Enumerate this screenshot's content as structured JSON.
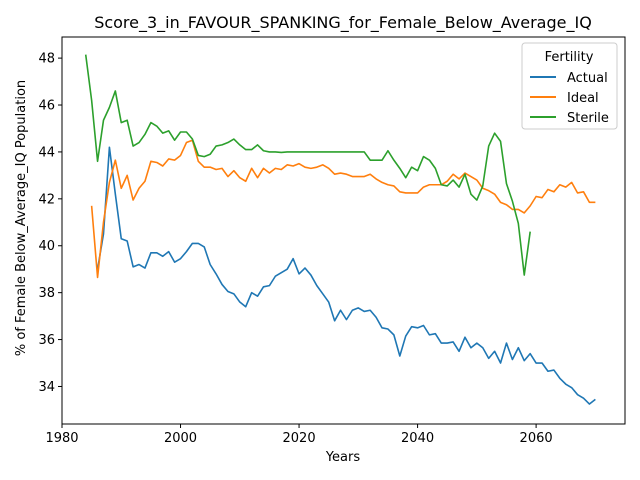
{
  "chart_data": {
    "type": "line",
    "title": "Score_3_in_FAVOUR_SPANKING_for_Female_Below_Average_IQ",
    "xlabel": "Years",
    "ylabel": "% of Female Below_Average_IQ Population",
    "xlim": [
      1980,
      2075
    ],
    "ylim": [
      32.4,
      48.9
    ],
    "xticks": [
      1980,
      2000,
      2020,
      2040,
      2060
    ],
    "yticks": [
      34,
      36,
      38,
      40,
      42,
      44,
      46,
      48
    ],
    "grid": false,
    "legend": {
      "title": "Fertility",
      "placement": "top-right"
    },
    "series": [
      {
        "name": "Actual",
        "color": "#1f77b4",
        "x": [
          1986,
          1987,
          1988,
          1989,
          1990,
          1991,
          1992,
          1993,
          1994,
          1995,
          1996,
          1997,
          1998,
          1999,
          2000,
          2001,
          2002,
          2003,
          2004,
          2005,
          2006,
          2007,
          2008,
          2009,
          2010,
          2011,
          2012,
          2013,
          2014,
          2015,
          2016,
          2017,
          2018,
          2019,
          2020,
          2021,
          2022,
          2023,
          2024,
          2025,
          2026,
          2027,
          2028,
          2029,
          2030,
          2031,
          2032,
          2033,
          2034,
          2035,
          2036,
          2037,
          2038,
          2039,
          2040,
          2041,
          2042,
          2043,
          2044,
          2045,
          2046,
          2047,
          2048,
          2049,
          2050,
          2051,
          2052,
          2053,
          2054,
          2055,
          2056,
          2057,
          2058,
          2059,
          2060,
          2061,
          2062,
          2063,
          2064,
          2065,
          2066,
          2067,
          2068,
          2069,
          2070
        ],
        "values": [
          39.0,
          40.5,
          44.2,
          42.2,
          40.3,
          40.2,
          39.1,
          39.2,
          39.05,
          39.7,
          39.7,
          39.55,
          39.75,
          39.3,
          39.45,
          39.75,
          40.1,
          40.1,
          39.95,
          39.2,
          38.8,
          38.35,
          38.05,
          37.95,
          37.6,
          37.4,
          38.0,
          37.85,
          38.25,
          38.3,
          38.7,
          38.85,
          39.0,
          39.45,
          38.8,
          39.05,
          38.75,
          38.3,
          37.95,
          37.6,
          36.8,
          37.25,
          36.85,
          37.25,
          37.35,
          37.2,
          37.25,
          36.95,
          36.5,
          36.45,
          36.2,
          35.3,
          36.15,
          36.55,
          36.5,
          36.6,
          36.2,
          36.25,
          35.85,
          35.85,
          35.9,
          35.5,
          36.1,
          35.65,
          35.85,
          35.65,
          35.2,
          35.5,
          35.0,
          35.85,
          35.15,
          35.65,
          35.1,
          35.4,
          35.0,
          35.0,
          34.65,
          34.7,
          34.35,
          34.1,
          33.95,
          33.65,
          33.5,
          33.25,
          33.45
        ]
      },
      {
        "name": "Ideal",
        "color": "#ff7f0e",
        "x": [
          1985,
          1986,
          1987,
          1988,
          1989,
          1990,
          1991,
          1992,
          1993,
          1994,
          1995,
          1996,
          1997,
          1998,
          1999,
          2000,
          2001,
          2002,
          2003,
          2004,
          2005,
          2006,
          2007,
          2008,
          2009,
          2010,
          2011,
          2012,
          2013,
          2014,
          2015,
          2016,
          2017,
          2018,
          2019,
          2020,
          2021,
          2022,
          2023,
          2024,
          2025,
          2026,
          2027,
          2028,
          2029,
          2030,
          2031,
          2032,
          2033,
          2034,
          2035,
          2036,
          2037,
          2038,
          2039,
          2040,
          2041,
          2042,
          2043,
          2044,
          2045,
          2046,
          2047,
          2048,
          2049,
          2050,
          2051,
          2052,
          2053,
          2054,
          2055,
          2056,
          2057,
          2058,
          2059,
          2060,
          2061,
          2062,
          2063,
          2064,
          2065,
          2066,
          2067,
          2068,
          2069,
          2070
        ],
        "values": [
          41.7,
          38.65,
          41.0,
          42.7,
          43.65,
          42.45,
          43.0,
          41.95,
          42.45,
          42.75,
          43.6,
          43.55,
          43.4,
          43.7,
          43.65,
          43.85,
          44.4,
          44.5,
          43.6,
          43.35,
          43.35,
          43.25,
          43.3,
          42.95,
          43.2,
          42.9,
          42.75,
          43.3,
          42.9,
          43.3,
          43.1,
          43.3,
          43.25,
          43.45,
          43.4,
          43.5,
          43.35,
          43.3,
          43.35,
          43.45,
          43.3,
          43.05,
          43.1,
          43.05,
          42.95,
          42.95,
          42.95,
          43.05,
          42.85,
          42.7,
          42.6,
          42.55,
          42.3,
          42.25,
          42.25,
          42.25,
          42.5,
          42.6,
          42.6,
          42.6,
          42.75,
          43.05,
          42.85,
          43.1,
          42.95,
          42.8,
          42.45,
          42.35,
          42.2,
          41.85,
          41.75,
          41.55,
          41.55,
          41.4,
          41.7,
          42.1,
          42.05,
          42.4,
          42.3,
          42.6,
          42.5,
          42.7,
          42.25,
          42.3,
          41.85,
          41.85
        ]
      },
      {
        "name": "Sterile",
        "color": "#2ca02c",
        "x": [
          1984,
          1985,
          1986,
          1987,
          1988,
          1989,
          1990,
          1991,
          1992,
          1993,
          1994,
          1995,
          1996,
          1997,
          1998,
          1999,
          2000,
          2001,
          2002,
          2003,
          2004,
          2005,
          2006,
          2007,
          2008,
          2009,
          2010,
          2011,
          2012,
          2013,
          2014,
          2015,
          2016,
          2017,
          2018,
          2019,
          2020,
          2021,
          2022,
          2023,
          2024,
          2025,
          2026,
          2027,
          2028,
          2029,
          2030,
          2031,
          2032,
          2033,
          2034,
          2035,
          2036,
          2037,
          2038,
          2039,
          2040,
          2041,
          2042,
          2043,
          2044,
          2045,
          2046,
          2047,
          2048,
          2049,
          2050,
          2051,
          2052,
          2053,
          2054,
          2055,
          2056,
          2057,
          2058,
          2059
        ],
        "values": [
          48.15,
          46.2,
          43.6,
          45.35,
          45.9,
          46.6,
          45.25,
          45.35,
          44.25,
          44.4,
          44.75,
          45.25,
          45.1,
          44.8,
          44.9,
          44.5,
          44.85,
          44.85,
          44.55,
          43.85,
          43.8,
          43.9,
          44.25,
          44.3,
          44.4,
          44.55,
          44.3,
          44.1,
          44.1,
          44.3,
          44.05,
          44.0,
          44.0,
          43.98,
          44.0,
          44.0,
          44.0,
          44.0,
          44.0,
          44.0,
          44.0,
          44.0,
          44.0,
          44.0,
          44.0,
          44.0,
          44.0,
          44.0,
          43.65,
          43.65,
          43.65,
          44.05,
          43.65,
          43.3,
          42.9,
          43.35,
          43.2,
          43.8,
          43.65,
          43.3,
          42.6,
          42.55,
          42.8,
          42.5,
          43.05,
          42.2,
          41.95,
          42.55,
          44.25,
          44.8,
          44.45,
          42.65,
          41.9,
          40.95,
          38.75,
          40.6
        ]
      }
    ]
  }
}
